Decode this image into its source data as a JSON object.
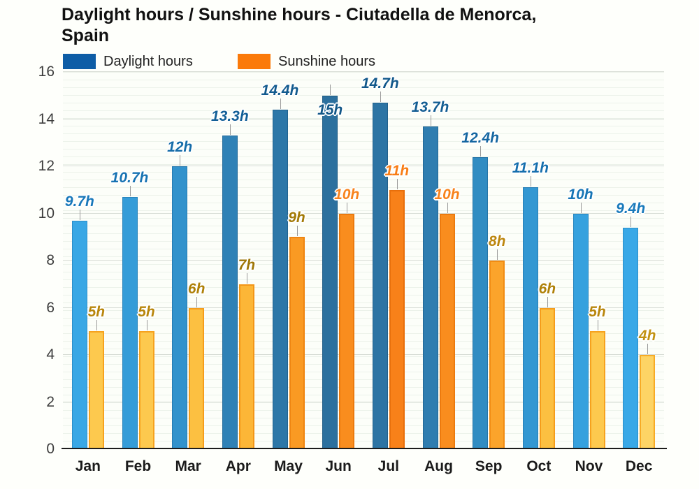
{
  "title": {
    "line1": "Daylight hours / Sunshine hours - Ciutadella de Menorca,",
    "line2": "Spain"
  },
  "legend": {
    "daylight": {
      "label": "Daylight hours",
      "color": "#0e5da6"
    },
    "sunshine": {
      "label": "Sunshine hours",
      "color": "#fb7a0a"
    }
  },
  "chart_data": {
    "type": "bar",
    "title": "Daylight hours / Sunshine hours - Ciutadella de Menorca, Spain",
    "categories": [
      "Jan",
      "Feb",
      "Mar",
      "Apr",
      "May",
      "Jun",
      "Jul",
      "Aug",
      "Sep",
      "Oct",
      "Nov",
      "Dec"
    ],
    "series": [
      {
        "name": "Daylight hours",
        "values": [
          9.7,
          10.7,
          12,
          13.3,
          14.4,
          15,
          14.7,
          13.7,
          12.4,
          11.1,
          10,
          9.4
        ],
        "labels": [
          "9.7h",
          "10.7h",
          "12h",
          "13.3h",
          "14.4h",
          "15h",
          "14.7h",
          "13.7h",
          "12.4h",
          "11.1h",
          "10h",
          "9.4h"
        ],
        "bar_colors": [
          "#39a7e5",
          "#359cd8",
          "#3292cc",
          "#2f81b6",
          "#2d77a8",
          "#2c709e",
          "#2d74a4",
          "#2f7db0",
          "#318cc2",
          "#3397d2",
          "#36a1de",
          "#39a8e7"
        ],
        "bar_border_colors": [
          "#2b8ec9",
          "#2884bc",
          "#267bb1",
          "#236b9c",
          "#21628f",
          "#205c86",
          "#215f8b",
          "#236795",
          "#2574a7",
          "#277eb6",
          "#2987c1",
          "#2b8fca"
        ],
        "label_colors": [
          "#1878ba",
          "#1672b2",
          "#156ca9",
          "#135f97",
          "#125a8e",
          "#115687",
          "#12588b",
          "#135d93",
          "#1566a1",
          "#166fae",
          "#1775b6",
          "#1879bb"
        ]
      },
      {
        "name": "Sunshine hours",
        "values": [
          5,
          5,
          6,
          7,
          9,
          10,
          11,
          10,
          8,
          6,
          5,
          4
        ],
        "labels": [
          "5h",
          "5h",
          "6h",
          "7h",
          "9h",
          "10h",
          "11h",
          "10h",
          "8h",
          "6h",
          "5h",
          "4h"
        ],
        "bar_colors": [
          "#fdc94e",
          "#fdc94e",
          "#fcc041",
          "#fcb637",
          "#fa9a23",
          "#f98d1e",
          "#f88119",
          "#f98d1e",
          "#fba42b",
          "#fcc041",
          "#fdc94e",
          "#fdd465"
        ],
        "bar_border_colors": [
          "#f6a21e",
          "#f6a21e",
          "#f59d1b",
          "#f39618",
          "#ef8511",
          "#ec7a0e",
          "#e86f0b",
          "#ec7a0e",
          "#f18c13",
          "#f59d1b",
          "#f6a21e",
          "#f7ab26"
        ],
        "label_colors": [
          "#b8860b",
          "#b8860b",
          "#af8108",
          "#9e7607",
          "#a37a06",
          "#f8821c",
          "#f87d15",
          "#f8821c",
          "#bc860d",
          "#af8108",
          "#b8860b",
          "#c29212"
        ]
      }
    ],
    "ylim": [
      0,
      16
    ],
    "yticks": [
      0,
      2,
      4,
      6,
      8,
      10,
      12,
      14,
      16
    ],
    "ytick_labels": [
      "0",
      "2",
      "4",
      "6",
      "8",
      "10",
      "12",
      "14",
      "16"
    ],
    "grid": true,
    "legend_position": "top",
    "inside_daylight_label_months": [
      "Jun"
    ]
  }
}
